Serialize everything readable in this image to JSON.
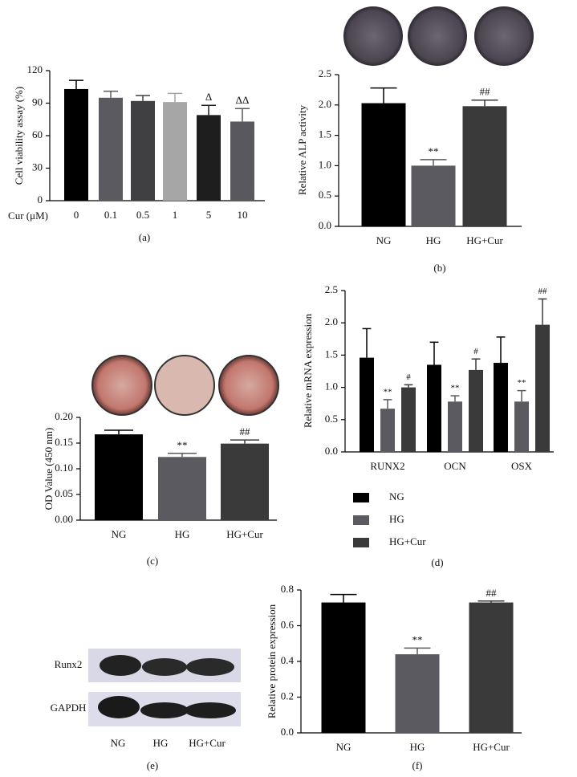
{
  "chart_data": [
    {
      "type": "bar",
      "panel_label": "(a)",
      "ylabel": "Cell viability assay (%)",
      "xlabel": "Cur (μM)",
      "categories": [
        "0",
        "0.1",
        "0.5",
        "1",
        "5",
        "10"
      ],
      "values": [
        103,
        95,
        92,
        91,
        79,
        73
      ],
      "errors": [
        8,
        6,
        5,
        8,
        9,
        12
      ],
      "annotations": [
        null,
        null,
        null,
        null,
        "Δ",
        "ΔΔ"
      ],
      "colors": [
        "#000000",
        "#5a5a60",
        "#404042",
        "#a6a6a6",
        "#1e1e1e",
        "#58585e"
      ],
      "ylim": [
        0,
        120
      ],
      "yticks": [
        0,
        30,
        60,
        90,
        120
      ]
    },
    {
      "type": "bar",
      "panel_label": "(b)",
      "ylabel": "Relative ALP activity",
      "categories": [
        "NG",
        "HG",
        "HG+Cur"
      ],
      "values": [
        2.03,
        1.0,
        1.98
      ],
      "errors": [
        0.25,
        0.1,
        0.1
      ],
      "annotations": [
        null,
        "**",
        "##"
      ],
      "colors": [
        "#000000",
        "#5a5a60",
        "#3a3a3a"
      ],
      "ylim": [
        0,
        2.5
      ],
      "yticks": [
        {
          "value": 0,
          "label": "0.0"
        },
        0.5,
        {
          "value": 1,
          "label": "1.0"
        },
        1.5,
        {
          "value": 2,
          "label": "2.0"
        },
        2.5
      ]
    },
    {
      "type": "bar",
      "panel_label": "(c)",
      "ylabel": "OD Value (450 nm)",
      "categories": [
        "NG",
        "HG",
        "HG+Cur"
      ],
      "values": [
        0.167,
        0.123,
        0.149
      ],
      "errors": [
        0.008,
        0.007,
        0.007
      ],
      "annotations": [
        null,
        "**",
        "##"
      ],
      "colors": [
        "#000000",
        "#5a5a60",
        "#3a3a3a"
      ],
      "ylim": [
        0,
        0.2
      ],
      "yticks": [
        {
          "value": 0,
          "label": "0.00"
        },
        {
          "value": 0.05,
          "label": "0.05"
        },
        {
          "value": 0.1,
          "label": "0.10"
        },
        {
          "value": 0.15,
          "label": "0.15"
        },
        {
          "value": 0.2,
          "label": "0.20"
        }
      ]
    },
    {
      "type": "grouped_bar",
      "panel_label": "(d)",
      "ylabel": "Relative mRNA expression",
      "categories": [
        "RUNX2",
        "OCN",
        "OSX"
      ],
      "series": [
        {
          "name": "NG",
          "color": "#000000",
          "values": [
            1.46,
            1.35,
            1.38
          ],
          "errors": [
            0.45,
            0.35,
            0.4
          ],
          "annotations": [
            null,
            null,
            null
          ]
        },
        {
          "name": "HG",
          "color": "#5a5a60",
          "values": [
            0.67,
            0.78,
            0.78
          ],
          "errors": [
            0.14,
            0.09,
            0.17
          ],
          "annotations": [
            "**",
            "**",
            "**"
          ]
        },
        {
          "name": "HG+Cur",
          "color": "#3a3a3a",
          "values": [
            1.0,
            1.27,
            1.97
          ],
          "errors": [
            0.04,
            0.17,
            0.4
          ],
          "annotations": [
            "#",
            "#",
            "##"
          ]
        }
      ],
      "ylim": [
        0,
        2.5
      ],
      "yticks": [
        {
          "value": 0,
          "label": "0.0"
        },
        0.5,
        {
          "value": 1,
          "label": "1.0"
        },
        1.5,
        {
          "value": 2,
          "label": "2.0"
        },
        2.5
      ]
    },
    {
      "type": "bar",
      "panel_label": "(f)",
      "ylabel": "Relative protein expression",
      "categories": [
        "NG",
        "HG",
        "HG+Cur"
      ],
      "values": [
        0.73,
        0.44,
        0.73
      ],
      "errors": [
        0.045,
        0.035,
        0.008
      ],
      "annotations": [
        null,
        "**",
        "##"
      ],
      "colors": [
        "#000000",
        "#5a5a60",
        "#3a3a3a"
      ],
      "ylim": [
        0,
        0.8
      ],
      "yticks": [
        {
          "value": 0,
          "label": "0.0"
        },
        0.2,
        0.4,
        0.6,
        0.8
      ]
    }
  ],
  "blot": {
    "panel_label": "(e)",
    "row_labels": [
      "Runx2",
      "GAPDH"
    ],
    "lane_labels": [
      "NG",
      "HG",
      "HG+Cur"
    ]
  }
}
